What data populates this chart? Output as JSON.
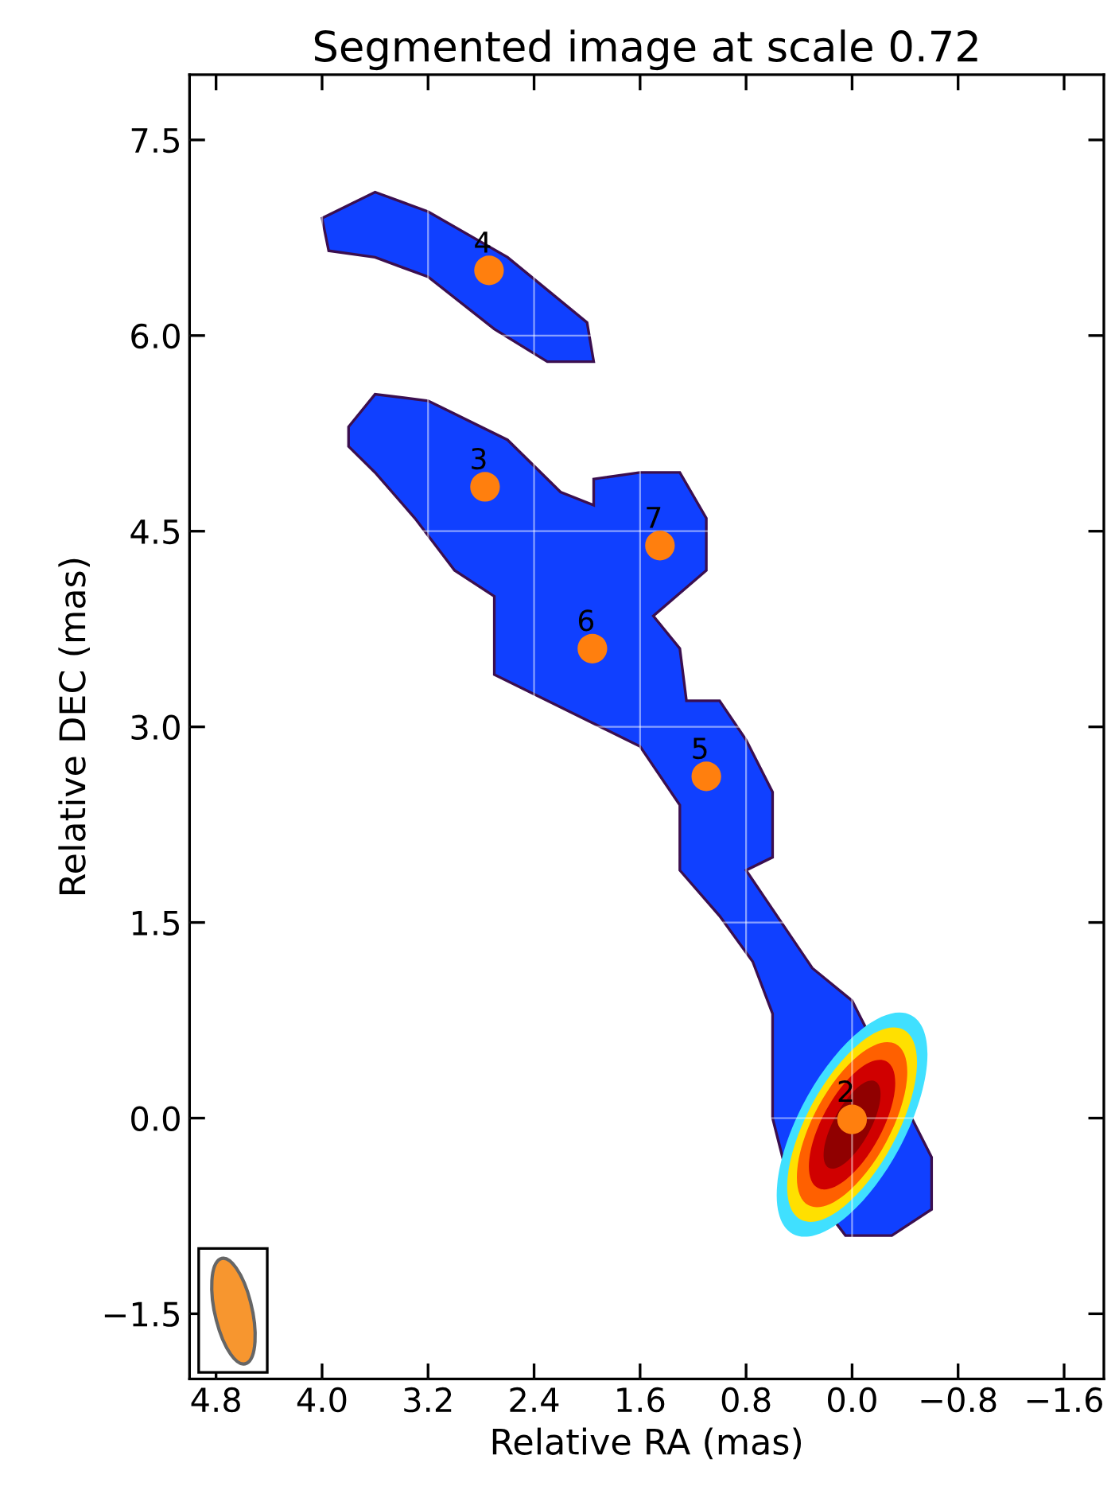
{
  "chart_data": {
    "type": "scatter",
    "title": "Segmented image at scale 0.72",
    "xlabel": "Relative RA (mas)",
    "ylabel": "Relative DEC (mas)",
    "x": [
      0.0,
      2.77,
      2.74,
      1.1,
      1.96,
      1.45
    ],
    "series": [
      {
        "color": "#ff7f0e",
        "values": [
          -0.01,
          4.84,
          6.5,
          2.62,
          3.6,
          4.39
        ]
      }
    ],
    "annotations": [
      {
        "text": "2",
        "x": 0.0,
        "y": -0.01
      },
      {
        "text": "3",
        "x": 2.77,
        "y": 4.84
      },
      {
        "text": "4",
        "x": 2.74,
        "y": 6.5
      },
      {
        "text": "5",
        "x": 1.1,
        "y": 2.62
      },
      {
        "text": "6",
        "x": 1.96,
        "y": 3.6
      },
      {
        "text": "7",
        "x": 1.45,
        "y": 4.39
      }
    ],
    "xlim": [
      5.0,
      -1.9
    ],
    "ylim": [
      -2.0,
      8.0
    ],
    "xticks": [
      4.8,
      {
        "value": 4.0,
        "label": "4.0"
      },
      3.2,
      2.4,
      1.6,
      0.8,
      {
        "value": 0.0,
        "label": "0.0"
      },
      {
        "value": -0.8,
        "label": "−0.8"
      },
      {
        "value": -1.6,
        "label": "−1.6"
      }
    ],
    "yticks": [
      {
        "value": -1.5,
        "label": "−1.5"
      },
      {
        "value": 0.0,
        "label": "0.0"
      },
      1.5,
      {
        "value": 3.0,
        "label": "3.0"
      },
      4.5,
      {
        "value": 6.0,
        "label": "6.0"
      },
      7.5
    ],
    "grid": true,
    "marker": "circle"
  }
}
